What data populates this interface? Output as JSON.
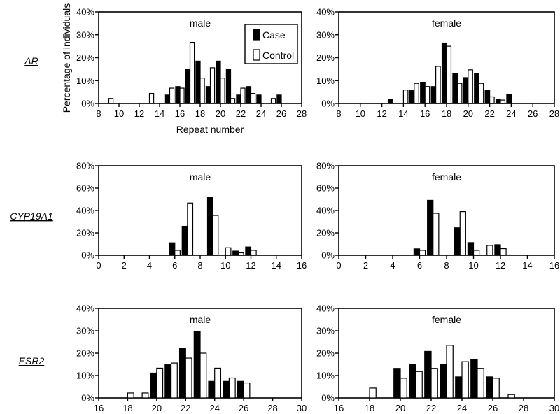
{
  "figure": {
    "legend": {
      "case_label": "Case",
      "control_label": "Control"
    },
    "ylabel": "Percentage of individuals",
    "xlabel": "Repeat number",
    "colors": {
      "case": "#000000",
      "control": "#ffffff",
      "stroke": "#000000"
    }
  },
  "chart_data": [
    {
      "type": "bar",
      "gene": "AR",
      "title": "male",
      "xlim": [
        8,
        28
      ],
      "xticks": [
        8,
        10,
        12,
        14,
        16,
        18,
        20,
        22,
        24,
        26,
        28
      ],
      "ylim": [
        0,
        40
      ],
      "yticks": [
        0,
        10,
        20,
        30,
        40
      ],
      "series": [
        {
          "name": "Case",
          "x": [
            15,
            16,
            17,
            18,
            19,
            20,
            21,
            22,
            23,
            24,
            26
          ],
          "values": [
            3.7,
            7.4,
            14.8,
            18.5,
            7.4,
            18.5,
            14.8,
            3.7,
            7.4,
            3.7,
            3.7
          ]
        },
        {
          "name": "Control",
          "x": [
            9,
            13,
            15,
            16,
            17,
            18,
            19,
            20,
            21,
            22,
            23,
            25
          ],
          "values": [
            2.2,
            4.4,
            6.7,
            6.7,
            26.7,
            11.1,
            15.6,
            11.1,
            2.2,
            6.7,
            4.4,
            2.2
          ]
        }
      ]
    },
    {
      "type": "bar",
      "gene": "AR",
      "title": "female",
      "xlim": [
        8,
        28
      ],
      "xticks": [
        8,
        10,
        12,
        14,
        16,
        18,
        20,
        22,
        24,
        26,
        28
      ],
      "ylim": [
        0,
        40
      ],
      "yticks": [
        0,
        10,
        20,
        30,
        40
      ],
      "series": [
        {
          "name": "Case",
          "x": [
            13,
            15,
            16,
            17,
            18,
            19,
            20,
            21,
            22,
            23,
            24
          ],
          "values": [
            1.9,
            5.6,
            9.3,
            7.4,
            26.4,
            13.2,
            11.3,
            13.2,
            5.7,
            1.9,
            3.8
          ]
        },
        {
          "name": "Control",
          "x": [
            14,
            15,
            16,
            17,
            18,
            19,
            20,
            21,
            22,
            23
          ],
          "values": [
            5.9,
            8.8,
            7.4,
            16.2,
            25.0,
            8.8,
            14.7,
            8.8,
            2.9,
            1.5
          ]
        }
      ]
    },
    {
      "type": "bar",
      "gene": "CYP19A1",
      "title": "male",
      "xlim": [
        0,
        16
      ],
      "xticks": [
        0,
        2,
        4,
        6,
        8,
        10,
        12,
        14,
        16
      ],
      "ylim": [
        0,
        80
      ],
      "yticks": [
        0,
        20,
        40,
        60,
        80
      ],
      "series": [
        {
          "name": "Case",
          "x": [
            6,
            7,
            9,
            11,
            12
          ],
          "values": [
            11.1,
            25.9,
            51.9,
            3.7,
            7.4
          ]
        },
        {
          "name": "Control",
          "x": [
            6,
            7,
            9,
            10,
            11,
            12
          ],
          "values": [
            4.4,
            46.7,
            35.6,
            6.7,
            2.2,
            4.4
          ]
        }
      ]
    },
    {
      "type": "bar",
      "gene": "CYP19A1",
      "title": "female",
      "xlim": [
        0,
        16
      ],
      "xticks": [
        0,
        2,
        4,
        6,
        8,
        10,
        12,
        14,
        16
      ],
      "ylim": [
        0,
        80
      ],
      "yticks": [
        0,
        20,
        40,
        60,
        80
      ],
      "series": [
        {
          "name": "Case",
          "x": [
            6,
            7,
            9,
            10,
            12
          ],
          "values": [
            5.7,
            49.1,
            24.5,
            11.3,
            9.4
          ]
        },
        {
          "name": "Control",
          "x": [
            6,
            7,
            9,
            10,
            11,
            12
          ],
          "values": [
            4.4,
            37.5,
            39.0,
            4.4,
            8.8,
            5.9
          ]
        }
      ]
    },
    {
      "type": "bar",
      "gene": "ESR2",
      "title": "male",
      "xlim": [
        16,
        30
      ],
      "xticks": [
        16,
        18,
        20,
        22,
        24,
        26,
        28,
        30
      ],
      "ylim": [
        0,
        40
      ],
      "yticks": [
        0,
        10,
        20,
        30,
        40
      ],
      "series": [
        {
          "name": "Case",
          "x": [
            20,
            21,
            22,
            23,
            24,
            25,
            26
          ],
          "values": [
            11.1,
            14.8,
            22.2,
            29.6,
            7.4,
            7.4,
            7.4
          ]
        },
        {
          "name": "Control",
          "x": [
            18,
            19,
            20,
            21,
            22,
            23,
            24,
            25,
            26
          ],
          "values": [
            2.2,
            2.2,
            13.3,
            15.6,
            17.8,
            20.0,
            13.3,
            8.9,
            6.7
          ]
        }
      ]
    },
    {
      "type": "bar",
      "gene": "ESR2",
      "title": "female",
      "xlim": [
        16,
        30
      ],
      "xticks": [
        16,
        18,
        20,
        22,
        24,
        26,
        28,
        30
      ],
      "ylim": [
        0,
        40
      ],
      "yticks": [
        0,
        10,
        20,
        30,
        40
      ],
      "series": [
        {
          "name": "Case",
          "x": [
            20,
            21,
            22,
            23,
            24,
            25,
            26
          ],
          "values": [
            13.2,
            15.1,
            20.8,
            15.1,
            9.4,
            17.0,
            9.4
          ]
        },
        {
          "name": "Control",
          "x": [
            18,
            20,
            21,
            22,
            23,
            24,
            25,
            26,
            27
          ],
          "values": [
            4.4,
            8.8,
            11.8,
            13.2,
            23.5,
            16.2,
            13.2,
            8.8,
            1.5
          ]
        }
      ]
    }
  ]
}
